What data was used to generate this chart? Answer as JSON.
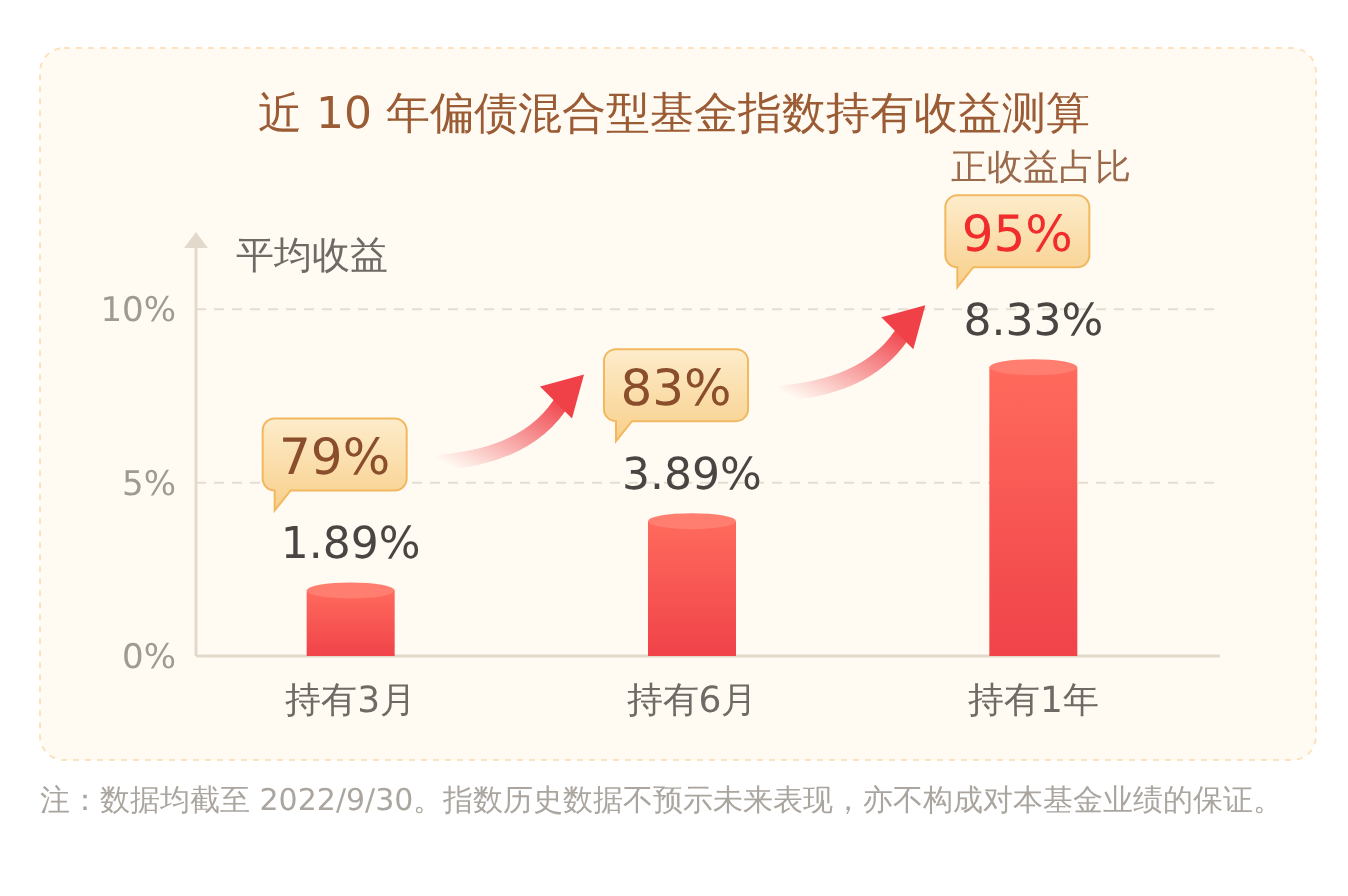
{
  "chart_data": {
    "type": "bar",
    "title": "近 10 年偏债混合型基金指数持有收益测算",
    "ylabel": "平均收益",
    "categories": [
      "持有3月",
      "持有6月",
      "持有1年"
    ],
    "values": [
      1.89,
      3.89,
      8.33
    ],
    "value_labels": [
      "1.89%",
      "3.89%",
      "8.33%"
    ],
    "color": "#f0434a",
    "ylim": [
      0,
      12
    ],
    "yticks": [
      {
        "value": 0,
        "label": "0%"
      },
      {
        "value": 5,
        "label": "5%"
      },
      {
        "value": 10,
        "label": "10%"
      }
    ],
    "grid": "y",
    "annotations": [
      "79%",
      "83%",
      "95%",
      "正收益占比",
      "注：数据均截至 2022/9/30。指数历史数据不预示未来表现，亦不构成对本基金业绩的保证。"
    ]
  }
}
